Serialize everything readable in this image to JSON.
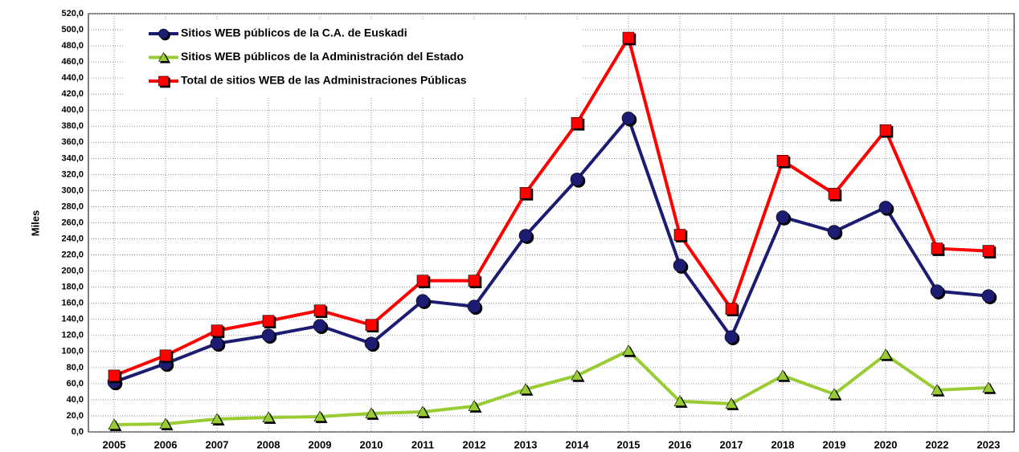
{
  "chart_data": {
    "type": "line",
    "y_label": "Miles",
    "categories": [
      "2005",
      "2006",
      "2007",
      "2008",
      "2009",
      "2010",
      "2011",
      "2012",
      "2013",
      "2014",
      "2015",
      "2016",
      "2017",
      "2018",
      "2019",
      "2020",
      "2022",
      "2023"
    ],
    "series": [
      {
        "name": "Sitios WEB públicos de la C.A. de Euskadi",
        "color": "#1c1c72",
        "marker": "circle",
        "values": [
          62,
          85,
          110,
          120,
          132,
          110,
          163,
          156,
          244,
          314,
          390,
          207,
          118,
          267,
          249,
          279,
          175,
          169
        ]
      },
      {
        "name": "Sitios WEB públicos de la Administración del  Estado",
        "color": "#99cc33",
        "marker": "triangle",
        "values": [
          9,
          10,
          16,
          18,
          19,
          23,
          25,
          32,
          53,
          70,
          101,
          38,
          35,
          70,
          47,
          96,
          52,
          55
        ]
      },
      {
        "name": "Total de sitios WEB de las Administraciones Públicas",
        "color": "#ff0000",
        "marker": "square",
        "values": [
          70,
          95,
          126,
          138,
          151,
          133,
          188,
          188,
          297,
          384,
          490,
          245,
          153,
          337,
          296,
          375,
          228,
          225
        ]
      }
    ],
    "ylim": [
      0,
      520
    ],
    "yticks": [
      {
        "value": 0,
        "label": "0,0"
      },
      {
        "value": 20,
        "label": "20,0"
      },
      {
        "value": 40,
        "label": "40,0"
      },
      {
        "value": 60,
        "label": "60,0"
      },
      {
        "value": 80,
        "label": "80,0"
      },
      {
        "value": 100,
        "label": "100,0"
      },
      {
        "value": 120,
        "label": "120,0"
      },
      {
        "value": 140,
        "label": "140,0"
      },
      {
        "value": 160,
        "label": "160,0"
      },
      {
        "value": 180,
        "label": "180,0"
      },
      {
        "value": 200,
        "label": "200,0"
      },
      {
        "value": 220,
        "label": "220,0"
      },
      {
        "value": 240,
        "label": "240,0"
      },
      {
        "value": 260,
        "label": "260,0"
      },
      {
        "value": 280,
        "label": "280,0"
      },
      {
        "value": 300,
        "label": "300,0"
      },
      {
        "value": 320,
        "label": "320,0"
      },
      {
        "value": 340,
        "label": "340,0"
      },
      {
        "value": 360,
        "label": "360,0"
      },
      {
        "value": 380,
        "label": "380,0"
      },
      {
        "value": 400,
        "label": "400,0"
      },
      {
        "value": 420,
        "label": "420,0"
      },
      {
        "value": 440,
        "label": "440,0"
      },
      {
        "value": 460,
        "label": "460,0"
      },
      {
        "value": 480,
        "label": "480,0"
      },
      {
        "value": 500,
        "label": "500,0"
      },
      {
        "value": 520,
        "label": "520,0"
      }
    ],
    "grid": true
  }
}
